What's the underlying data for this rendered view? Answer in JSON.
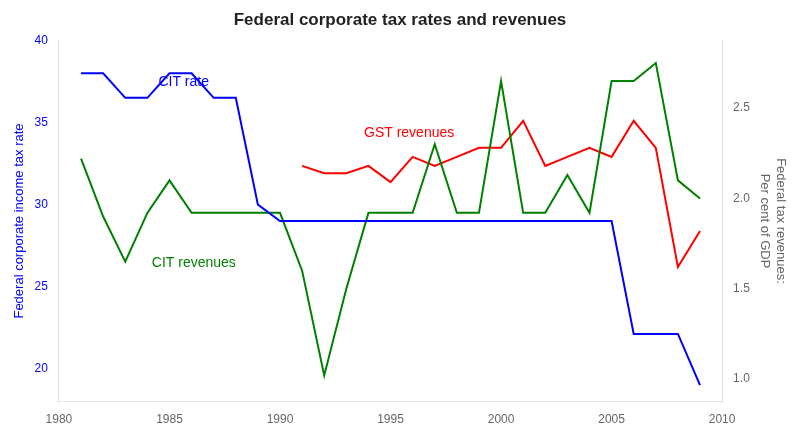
{
  "chart_data": {
    "type": "line",
    "title": "Federal corporate tax rates and revenues",
    "ylabel": "Federal corporate income tax rate",
    "y2label": "Federal tax revenues:\nPer cent of GDP",
    "x": [
      1981,
      1982,
      1983,
      1984,
      1985,
      1986,
      1987,
      1988,
      1989,
      1990,
      1991,
      1992,
      1993,
      1994,
      1995,
      1996,
      1997,
      1998,
      1999,
      2000,
      2001,
      2002,
      2003,
      2004,
      2005,
      2006,
      2007,
      2008,
      2009
    ],
    "series": [
      {
        "name": "CIT rate",
        "color": "#0000FF",
        "values": [
          38.0,
          38.0,
          36.5,
          36.5,
          38.0,
          38.0,
          36.5,
          36.5,
          30.0,
          29.0,
          29.0,
          29.0,
          29.0,
          29.0,
          29.0,
          29.0,
          29.0,
          29.0,
          29.0,
          29.0,
          29.0,
          29.0,
          29.0,
          29.0,
          29.0,
          22.12,
          22.12,
          22.12,
          19.0
        ]
      },
      {
        "name": "CIT revenues",
        "color": "#008000",
        "axis": "y2",
        "values": [
          2.22,
          1.9,
          1.65,
          1.92,
          2.1,
          1.92,
          1.92,
          1.92,
          1.92,
          1.92,
          1.6,
          1.02,
          1.5,
          1.92,
          1.92,
          1.92,
          2.3,
          1.92,
          1.92,
          2.65,
          1.92,
          1.92,
          2.13,
          1.92,
          2.65,
          2.65,
          2.75,
          2.1,
          2.0
        ]
      },
      {
        "name": "GST revenues",
        "color": "#FF0000",
        "axis": "y2",
        "values": [
          null,
          null,
          null,
          null,
          null,
          null,
          null,
          null,
          null,
          null,
          2.18,
          2.14,
          2.14,
          2.18,
          2.09,
          2.23,
          2.18,
          2.23,
          2.28,
          2.28,
          2.43,
          2.18,
          2.23,
          2.28,
          2.23,
          2.43,
          2.28,
          1.62,
          1.82
        ]
      }
    ],
    "xlim": [
      1980,
      2010
    ],
    "xticks": [
      1980,
      1985,
      1990,
      1995,
      2000,
      2005,
      2010
    ],
    "ylim": [
      18,
      40
    ],
    "yticks": [
      20,
      25,
      30,
      35,
      40
    ],
    "y2lim": [
      0.875,
      2.875
    ],
    "y2ticks": [
      {
        "value": 1.0,
        "label": "1.0"
      },
      {
        "value": 1.5,
        "label": "1.5"
      },
      {
        "value": 2.0,
        "label": "2.0"
      },
      {
        "value": 2.5,
        "label": "2.5"
      }
    ],
    "annotations": [
      {
        "text": "CIT rate",
        "x": 1984.5,
        "y": 37.2,
        "color": "#0000FF"
      },
      {
        "text": "CIT revenues",
        "x": 1984.2,
        "y": 1.62,
        "color": "#008000",
        "axis": "y2"
      },
      {
        "text": "GST revenues",
        "x": 1993.8,
        "y": 2.34,
        "color": "#FF0000",
        "axis": "y2"
      }
    ],
    "grid": false
  }
}
